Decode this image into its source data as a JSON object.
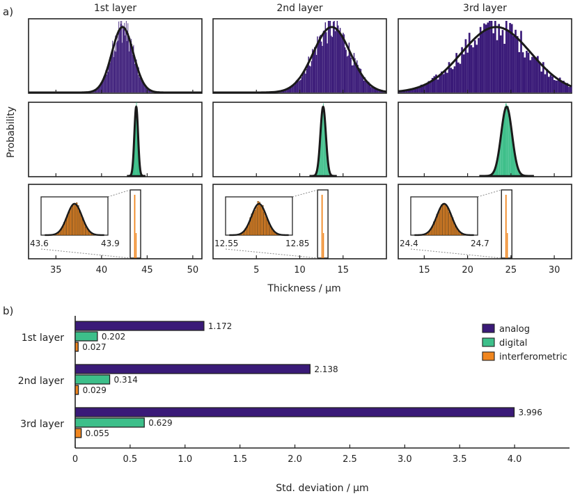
{
  "panel_labels": {
    "a": "a)",
    "b": "b)"
  },
  "colors": {
    "analog": "#3a1a78",
    "digital": "#3dbf8a",
    "interferometric": "#f0861f",
    "fit": "#1a1a1a",
    "frame": "#222222"
  },
  "chart_data": [
    {
      "type": "histogram-grid",
      "ylabel": "Probability",
      "xlabel": "Thickness / µm",
      "rows": [
        "analog",
        "digital",
        "interferometric"
      ],
      "columns": [
        {
          "title": "1st layer",
          "xlim": [
            32,
            51
          ],
          "xticks": [
            35,
            40,
            45,
            50
          ],
          "xtick_labels": [
            "35",
            "40",
            "45",
            "50"
          ],
          "analog": {
            "mean": 42.3,
            "std": 1.172
          },
          "digital": {
            "mean": 43.8,
            "std": 0.202
          },
          "interferometric": {
            "mean": 43.75,
            "std": 0.027
          },
          "inset": {
            "range": [
              43.6,
              43.9
            ],
            "labels": [
              "43.6",
              "43.9"
            ]
          }
        },
        {
          "title": "2nd layer",
          "xlim": [
            0,
            20
          ],
          "xticks": [
            5,
            10,
            15
          ],
          "xtick_labels": [
            "5",
            "10",
            "15"
          ],
          "analog": {
            "mean": 13.7,
            "std": 2.138
          },
          "digital": {
            "mean": 12.7,
            "std": 0.314
          },
          "interferometric": {
            "mean": 12.7,
            "std": 0.029
          },
          "inset": {
            "range": [
              12.55,
              12.85
            ],
            "labels": [
              "12.55",
              "12.85"
            ]
          }
        },
        {
          "title": "3rd layer",
          "xlim": [
            12,
            32
          ],
          "xticks": [
            15,
            20,
            25,
            30
          ],
          "xtick_labels": [
            "15",
            "20",
            "25",
            "30"
          ],
          "analog": {
            "mean": 23.3,
            "std": 3.996
          },
          "digital": {
            "mean": 24.5,
            "std": 0.629
          },
          "interferometric": {
            "mean": 24.55,
            "std": 0.055
          },
          "inset": {
            "range": [
              24.4,
              24.7
            ],
            "labels": [
              "24.4",
              "24.7"
            ]
          }
        }
      ]
    },
    {
      "type": "bar",
      "orientation": "horizontal",
      "categories": [
        "1st layer",
        "2nd layer",
        "3rd layer"
      ],
      "series": [
        {
          "name": "analog",
          "values": [
            1.172,
            2.138,
            3.996
          ],
          "labels": [
            "1.172",
            "2.138",
            "3.996"
          ]
        },
        {
          "name": "digital",
          "values": [
            0.202,
            0.314,
            0.629
          ],
          "labels": [
            "0.202",
            "0.314",
            "0.629"
          ]
        },
        {
          "name": "interferometric",
          "values": [
            0.027,
            0.029,
            0.055
          ],
          "labels": [
            "0.027",
            "0.029",
            "0.055"
          ]
        }
      ],
      "xlabel": "Std. deviation / µm",
      "xlim": [
        0,
        4.5
      ],
      "xticks": [
        0,
        0.5,
        1.0,
        1.5,
        2.0,
        2.5,
        3.0,
        3.5,
        4.0
      ],
      "xtick_labels": [
        "0",
        "0.5",
        "1.0",
        "1.5",
        "2.0",
        "2.5",
        "3.0",
        "3.5",
        "4.0"
      ],
      "legend_position": "top-right"
    }
  ]
}
